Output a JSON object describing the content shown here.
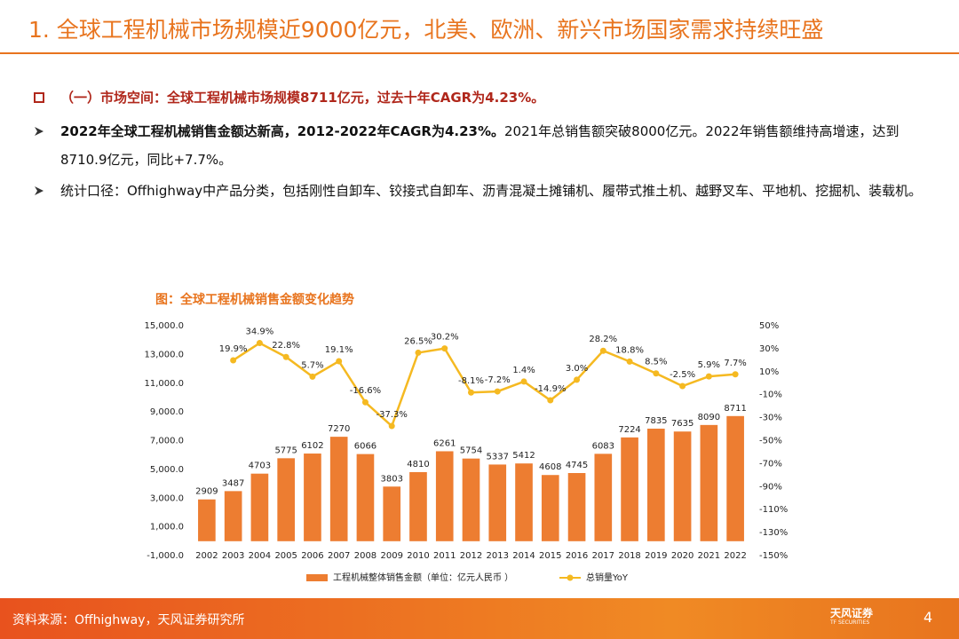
{
  "header": {
    "title": "1. 全球工程机械市场规模近9000亿元，北美、欧洲、新兴市场国家需求持续旺盛"
  },
  "bullets": [
    {
      "text": "（一）市场空间：全球工程机械市场规模8711亿元，过去十年CAGR为4.23%。"
    },
    {
      "bold": "2022年全球工程机械销售金额达新高，2012-2022年CAGR为4.23%。",
      "text": "2021年总销售额突破8000亿元。2022年销售额维持高增速，达到8710.9亿元，同比+7.7%。"
    },
    {
      "text": "统计口径：Offhighway中产品分类，包括刚性自卸车、铰接式自卸车、沥青混凝土摊铺机、履带式推土机、越野叉车、平地机、挖掘机、装载机。"
    }
  ],
  "chart_data": {
    "type": "bar",
    "title": "图：全球工程机械销售金额变化趋势",
    "categories": [
      "2002",
      "2003",
      "2004",
      "2005",
      "2006",
      "2007",
      "2008",
      "2009",
      "2010",
      "2011",
      "2012",
      "2013",
      "2014",
      "2015",
      "2016",
      "2017",
      "2018",
      "2019",
      "2020",
      "2021",
      "2022"
    ],
    "series": [
      {
        "name": "工程机械整体销售金额（单位：亿元人民币 ）",
        "type": "bar",
        "color": "#ED7D31",
        "values": [
          2909,
          3487,
          4703,
          5775,
          6102,
          7270,
          6066,
          3803,
          4810,
          6261,
          5754,
          5337,
          5412,
          4608,
          4745,
          6083,
          7224,
          7835,
          7635,
          8090,
          8711
        ]
      },
      {
        "name": "总销量YoY",
        "type": "line",
        "axis": "y2",
        "color": "#F5B921",
        "values": [
          null,
          19.9,
          34.9,
          22.8,
          5.7,
          19.1,
          -16.6,
          -37.3,
          26.5,
          30.2,
          -8.1,
          -7.2,
          1.4,
          -14.9,
          3.0,
          28.2,
          18.8,
          8.5,
          -2.5,
          5.9,
          7.7
        ],
        "value_labels": [
          null,
          "19.9%",
          "34.9%",
          "22.8%",
          "5.7%",
          "19.1%",
          "-16.6%",
          "-37.3%",
          "26.5%",
          "30.2%",
          "-8.1%",
          "-7.2%",
          "1.4%",
          "-14.9%",
          "3.0%",
          "28.2%",
          "18.8%",
          "8.5%",
          "-2.5%",
          "5.9%",
          "7.7%"
        ]
      }
    ],
    "ylim": [
      -1000,
      15000
    ],
    "yticks": [
      {
        "value": -1000,
        "label": "-1,000.0"
      },
      {
        "value": 1000,
        "label": "1,000.0"
      },
      {
        "value": 3000,
        "label": "3,000.0"
      },
      {
        "value": 5000,
        "label": "5,000.0"
      },
      {
        "value": 7000,
        "label": "7,000.0"
      },
      {
        "value": 9000,
        "label": "9,000.0"
      },
      {
        "value": 11000,
        "label": "11,000.0"
      },
      {
        "value": 13000,
        "label": "13,000.0"
      },
      {
        "value": 15000,
        "label": "15,000.0"
      }
    ],
    "y2lim": [
      -150,
      50
    ],
    "y2ticks": [
      {
        "value": -150,
        "label": "-150%"
      },
      {
        "value": -130,
        "label": "-130%"
      },
      {
        "value": -110,
        "label": "-110%"
      },
      {
        "value": -90,
        "label": "-90%"
      },
      {
        "value": -70,
        "label": "-70%"
      },
      {
        "value": -50,
        "label": "-50%"
      },
      {
        "value": -30,
        "label": "-30%"
      },
      {
        "value": -10,
        "label": "-10%"
      },
      {
        "value": 10,
        "label": "10%"
      },
      {
        "value": 30,
        "label": "30%"
      },
      {
        "value": 50,
        "label": "50%"
      }
    ],
    "legend": "bottom"
  },
  "footer": {
    "source": "资料来源：Offhighway，天风证券研究所",
    "logo": "天风证券",
    "logo_sub": "TF SECURITIES",
    "page": "4"
  }
}
